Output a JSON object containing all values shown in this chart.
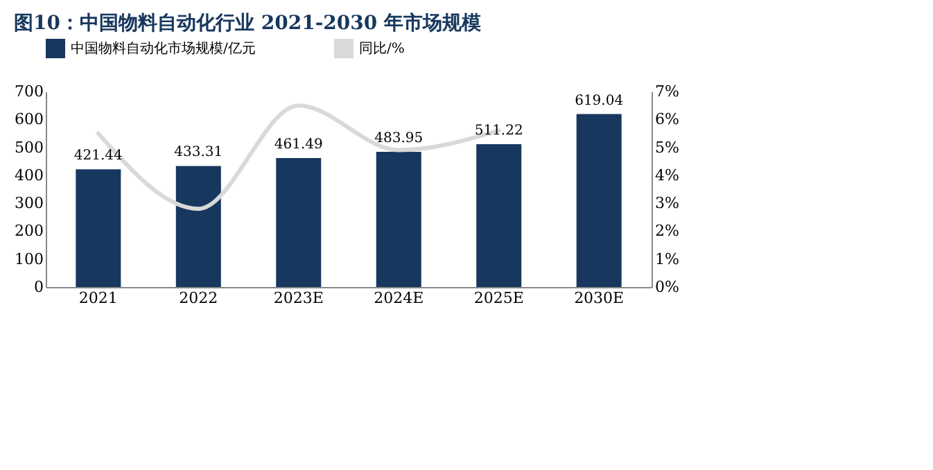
{
  "chart_data": {
    "type": "bar",
    "title": "图10：中国物料自动化行业 2021-2030 年市场规模",
    "categories": [
      "2021",
      "2022",
      "2023E",
      "2024E",
      "2025E",
      "2030E"
    ],
    "series": [
      {
        "name": "中国物料自动化市场规模/亿元",
        "color": "#17375e",
        "values": [
          421.44,
          433.31,
          461.49,
          483.95,
          511.22,
          619.04
        ],
        "value_labels": [
          "421.44",
          "433.31",
          "461.49",
          "483.95",
          "511.22",
          "619.04"
        ]
      },
      {
        "name": "同比/%",
        "type": "line",
        "axis": "y2",
        "color": "#d9d9d9",
        "values": [
          5.5,
          2.8,
          6.5,
          4.9,
          5.6,
          null
        ]
      }
    ],
    "ylim": [
      0,
      700
    ],
    "yticks": [
      0,
      100,
      200,
      300,
      400,
      500,
      600,
      700
    ],
    "y2lim": [
      0,
      7
    ],
    "y2ticks": [
      {
        "value": 0,
        "label": "0%"
      },
      {
        "value": 1,
        "label": "1%"
      },
      {
        "value": 2,
        "label": "2%"
      },
      {
        "value": 3,
        "label": "3%"
      },
      {
        "value": 4,
        "label": "4%"
      },
      {
        "value": 5,
        "label": "5%"
      },
      {
        "value": 6,
        "label": "6%"
      },
      {
        "value": 7,
        "label": "7%"
      }
    ],
    "legend": "top",
    "grid": false
  }
}
